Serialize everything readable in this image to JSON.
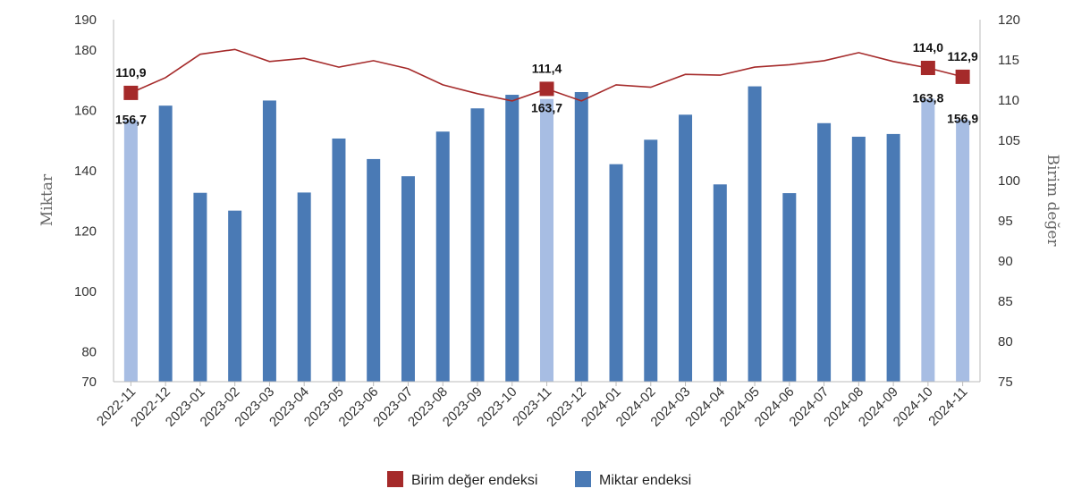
{
  "chart_data": {
    "type": "bar",
    "categories": [
      "2022-11",
      "2022-12",
      "2023-01",
      "2023-02",
      "2023-03",
      "2023-04",
      "2023-05",
      "2023-06",
      "2023-07",
      "2023-08",
      "2023-09",
      "2023-10",
      "2023-11",
      "2023-12",
      "2024-01",
      "2024-02",
      "2024-03",
      "2024-04",
      "2024-05",
      "2024-06",
      "2024-07",
      "2024-08",
      "2024-09",
      "2024-10",
      "2024-11"
    ],
    "series": [
      {
        "name": "Miktar endeksi",
        "type": "bar",
        "axis": "left",
        "color": "#4a7ab5",
        "highlight_color": "#a7bde3",
        "values": [
          156.7,
          161.5,
          132.6,
          126.7,
          163.2,
          132.7,
          150.6,
          143.8,
          138.1,
          152.9,
          160.6,
          165.1,
          163.7,
          166.0,
          142.1,
          150.2,
          158.5,
          135.4,
          167.9,
          132.5,
          155.7,
          151.2,
          152.1,
          163.8,
          156.9
        ],
        "highlighted_indices": [
          0,
          12,
          23,
          24
        ],
        "data_labels": [
          {
            "index": 0,
            "text": "156,7"
          },
          {
            "index": 12,
            "text": "163,7"
          },
          {
            "index": 23,
            "text": "163,8"
          },
          {
            "index": 24,
            "text": "156,9"
          }
        ]
      },
      {
        "name": "Birim değer endeksi",
        "type": "line",
        "axis": "right",
        "color": "#a52a2a",
        "values": [
          110.9,
          112.8,
          115.7,
          116.3,
          114.8,
          115.2,
          114.1,
          114.9,
          113.9,
          111.9,
          110.8,
          109.9,
          111.4,
          109.9,
          111.9,
          111.6,
          113.2,
          113.1,
          114.1,
          114.4,
          114.9,
          115.9,
          114.8,
          114.0,
          112.9
        ],
        "marker_indices": [
          0,
          12,
          23,
          24
        ],
        "data_labels": [
          {
            "index": 0,
            "text": "110,9"
          },
          {
            "index": 12,
            "text": "111,4"
          },
          {
            "index": 23,
            "text": "114,0"
          },
          {
            "index": 24,
            "text": "112,9"
          }
        ]
      }
    ],
    "y_left": {
      "label": "Miktar",
      "ticks": [
        70,
        80,
        100,
        120,
        140,
        160,
        180,
        190
      ],
      "ylim": [
        70,
        190
      ]
    },
    "y_right": {
      "label": "Birim değer",
      "ticks": [
        75,
        80,
        85,
        90,
        95,
        100,
        105,
        110,
        115,
        120
      ],
      "ylim": [
        75,
        120
      ]
    },
    "legend": {
      "position": "bottom-center",
      "items": [
        {
          "label": "Birim değer endeksi",
          "color": "#a52a2a"
        },
        {
          "label": "Miktar endeksi",
          "color": "#4a7ab5"
        }
      ]
    },
    "grid": false
  }
}
